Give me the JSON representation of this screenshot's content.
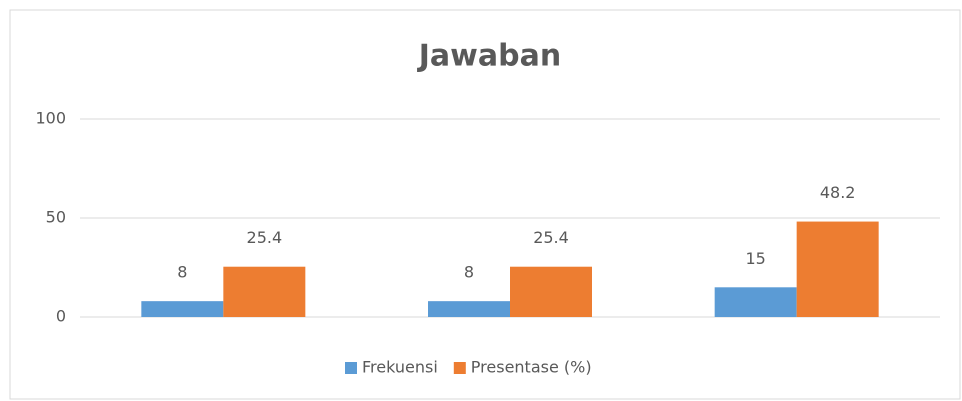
{
  "chart_data": {
    "type": "bar",
    "title": "Jawaban",
    "categories": [
      null,
      null,
      null
    ],
    "series": [
      {
        "name": "Frekuensi",
        "color": "#5b9bd5",
        "values": [
          8,
          8,
          15
        ]
      },
      {
        "name": "Presentase (%)",
        "color": "#ed7d31",
        "values": [
          25.4,
          25.4,
          48.2
        ]
      }
    ],
    "ylim": [
      0,
      100
    ],
    "yticks": [
      0,
      50,
      100
    ],
    "grid": true,
    "legend": "bottom"
  }
}
